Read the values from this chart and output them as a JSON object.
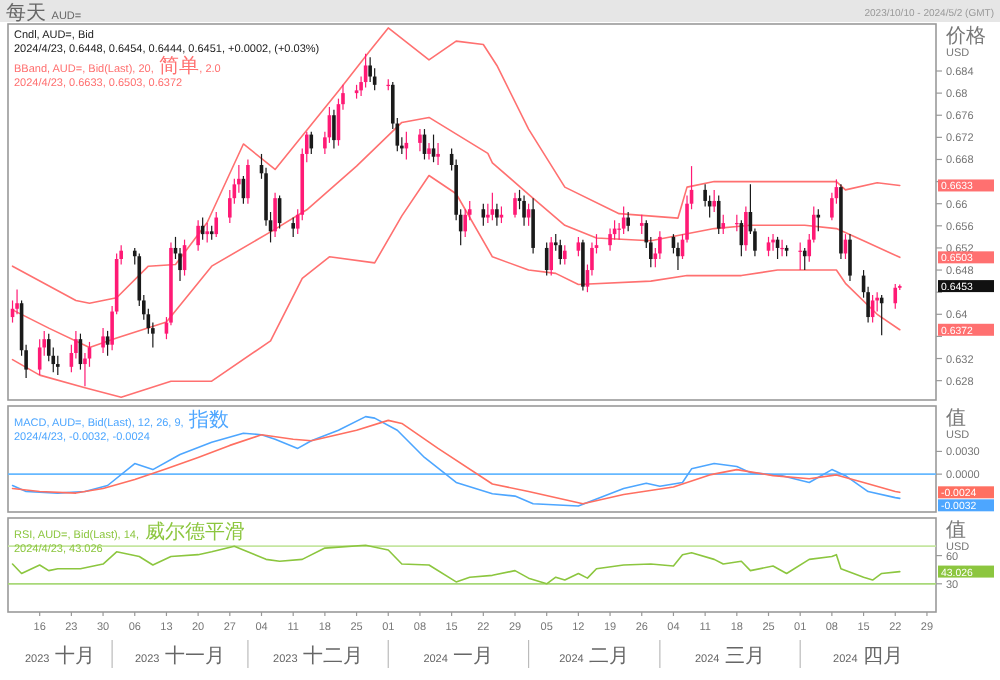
{
  "chart_data": [
    {
      "type": "candlestick",
      "title": "Cndl, AUD=, Bid",
      "subtitle": "2024/4/23, 0.6448, 0.6454, 0.6444, 0.6451, +0.0002, (+0.03%)",
      "ylabel": "价格\nUSD",
      "legend": "top left",
      "tick_labels": "y",
      "colors": [
        "#ff1a75",
        "#ff1a75",
        "#1a1a1a",
        "#1a1a1a",
        "#ff1a75",
        "#ff1a75",
        "#1a1a1a",
        "#1a1a1a",
        "#1a1a1a",
        "#ff1a75",
        "#ff1a75",
        "#1a1a1a",
        "#ff1a75",
        "#ff1a75",
        "#ff1a75",
        "#1a1a1a",
        "#ff1a75",
        "#ff1a75",
        "#ff1a75",
        "#1a1a1a",
        "#1a1a1a",
        "#1a1a1a",
        "#1a1a1a",
        "#1a1a1a",
        "#ff1a75",
        "#ff1a75",
        "#1a1a1a",
        "#1a1a1a",
        "#ff1a75",
        "#ff1a75",
        "#1a1a1a",
        "#ff1a75",
        "#1a1a1a",
        "#ff1a75",
        "#ff1a75",
        "#ff1a75",
        "#ff1a75",
        "#1a1a1a",
        "#ff1a75",
        "#1a1a1a",
        "#1a1a1a",
        "#1a1a1a",
        "#ff1a75",
        "#1a1a1a",
        "#1a1a1a",
        "#ff1a75",
        "#ff1a75",
        "#ff1a75",
        "#1a1a1a",
        "#ff1a75",
        "#ff1a75",
        "#1a1a1a",
        "#ff1a75",
        "#ff1a75",
        "#ff1a75",
        "#ff1a75",
        "#ff1a75",
        "#1a1a1a",
        "#1a1a1a",
        "#ff1a75",
        "#1a1a1a",
        "#1a1a1a",
        "#1a1a1a",
        "#ff1a75",
        "#ff1a75",
        "#1a1a1a",
        "#ff1a75",
        "#1a1a1a",
        "#ff1a75",
        "#1a1a1a",
        "#1a1a1a",
        "#1a1a1a",
        "#ff1a75",
        "#ff1a75",
        "#1a1a1a",
        "#ff1a75",
        "#ff1a75",
        "#1a1a1a",
        "#ff1a75",
        "#ff1a75",
        "#1a1a1a",
        "#1a1a1a",
        "#ff1a75",
        "#1a1a1a",
        "#1a1a1a",
        "#ff1a75",
        "#1a1a1a",
        "#1a1a1a",
        "#ff1a75",
        "#ff1a75",
        "#1a1a1a",
        "#ff1a75",
        "#ff1a75",
        "#ff1a75",
        "#ff1a75",
        "#ff1a75",
        "#ff1a75",
        "#ff1a75",
        "#1a1a1a",
        "#ff1a75",
        "#1a1a1a",
        "#1a1a1a",
        "#ff1a75",
        "#ff1a75",
        "#1a1a1a",
        "#1a1a1a",
        "#ff1a75",
        "#ff1a75",
        "#ff1a75",
        "#1a1a1a",
        "#1a1a1a",
        "#ff1a75",
        "#1a1a1a",
        "#ff1a75",
        "#ff1a75",
        "#1a1a1a",
        "#ff1a75",
        "#1a1a1a",
        "#1a1a1a",
        "#ff1a75",
        "#ff1a75",
        "#1a1a1a",
        "#ff1a75",
        "#1a1a1a",
        "#ff1a75",
        "#1a1a1a",
        "#ff1a75",
        "#ff1a75",
        "#1a1a1a",
        "#ff1a75",
        "#ff1a75",
        "#1a1a1a",
        "#ff1a75",
        "#1a1a1a",
        "#1a1a1a",
        "#1a1a1a",
        "#ff1a75",
        "#ff1a75",
        "#1a1a1a",
        "#ff1a75",
        "#ff1a75"
      ],
      "xlim": [
        "2023-10-09",
        "2024-05-01"
      ],
      "ylim": [
        0.6245,
        0.6925
      ],
      "yticks": [
        0.684,
        0.68,
        0.676,
        0.672,
        0.668,
        {
          "value": 0.664,
          "label": null
        },
        0.66,
        0.656,
        0.652,
        0.648,
        {
          "value": 0.644,
          "label": null
        },
        0.64,
        {
          "value": 0.636,
          "label": null
        },
        0.632,
        0.628
      ],
      "annotations": [
        {
          "text": "每天 AUD="
        },
        {
          "text": "2023/10/10 - 2024/5/2 (GMT)"
        },
        "2024/4/23, 0.6633, 0.6503, 0.6372",
        {
          "text": "0.6633"
        },
        {
          "text": "0.6503"
        },
        {
          "text": "0.6372"
        },
        {
          "text": "0.6453"
        }
      ],
      "x": [
        "2023-10-10",
        "2023-10-11",
        "2023-10-12",
        "2023-10-13",
        "2023-10-16",
        "2023-10-17",
        "2023-10-18",
        "2023-10-19",
        "2023-10-20",
        "2023-10-23",
        "2023-10-24",
        "2023-10-25",
        "2023-10-26",
        "2023-10-27",
        "2023-10-30",
        "2023-10-31",
        "2023-11-01",
        "2023-11-02",
        "2023-11-03",
        "2023-11-06",
        "2023-11-07",
        "2023-11-08",
        "2023-11-09",
        "2023-11-10",
        "2023-11-13",
        "2023-11-14",
        "2023-11-15",
        "2023-11-16",
        "2023-11-17",
        "2023-11-20",
        "2023-11-21",
        "2023-11-22",
        "2023-11-23",
        "2023-11-24",
        "2023-11-27",
        "2023-11-28",
        "2023-11-29",
        "2023-11-30",
        "2023-12-01",
        "2023-12-04",
        "2023-12-05",
        "2023-12-06",
        "2023-12-07",
        "2023-12-08",
        "2023-12-11",
        "2023-12-12",
        "2023-12-13",
        "2023-12-14",
        "2023-12-15",
        "2023-12-18",
        "2023-12-19",
        "2023-12-20",
        "2023-12-21",
        "2023-12-22",
        "2023-12-25",
        "2023-12-26",
        "2023-12-27",
        "2023-12-28",
        "2023-12-29",
        "2024-01-01",
        "2024-01-02",
        "2024-01-03",
        "2024-01-04",
        "2024-01-05",
        "2024-01-08",
        "2024-01-09",
        "2024-01-10",
        "2024-01-11",
        "2024-01-12",
        "2024-01-15",
        "2024-01-16",
        "2024-01-17",
        "2024-01-18",
        "2024-01-19",
        "2024-01-22",
        "2024-01-23",
        "2024-01-24",
        "2024-01-25",
        "2024-01-26",
        "2024-01-29",
        "2024-01-30",
        "2024-01-31",
        "2024-02-01",
        "2024-02-02",
        "2024-02-05",
        "2024-02-06",
        "2024-02-07",
        "2024-02-08",
        "2024-02-09",
        "2024-02-12",
        "2024-02-13",
        "2024-02-14",
        "2024-02-15",
        "2024-02-16",
        "2024-02-19",
        "2024-02-20",
        "2024-02-21",
        "2024-02-22",
        "2024-02-23",
        "2024-02-26",
        "2024-02-27",
        "2024-02-28",
        "2024-02-29",
        "2024-03-01",
        "2024-03-04",
        "2024-03-05",
        "2024-03-06",
        "2024-03-07",
        "2024-03-08",
        "2024-03-11",
        "2024-03-12",
        "2024-03-13",
        "2024-03-14",
        "2024-03-15",
        "2024-03-18",
        "2024-03-19",
        "2024-03-20",
        "2024-03-21",
        "2024-03-22",
        "2024-03-25",
        "2024-03-26",
        "2024-03-27",
        "2024-03-28",
        "2024-03-29",
        "2024-04-01",
        "2024-04-02",
        "2024-04-03",
        "2024-04-04",
        "2024-04-05",
        "2024-04-08",
        "2024-04-09",
        "2024-04-10",
        "2024-04-11",
        "2024-04-12",
        "2024-04-15",
        "2024-04-16",
        "2024-04-17",
        "2024-04-18",
        "2024-04-19",
        "2024-04-22",
        "2024-04-23"
      ],
      "ohlc": [
        [
          0.6395,
          0.6425,
          0.6385,
          0.641
        ],
        [
          0.641,
          0.6445,
          0.64,
          0.642
        ],
        [
          0.642,
          0.6425,
          0.6325,
          0.6335
        ],
        [
          0.6335,
          0.6345,
          0.6285,
          0.63
        ],
        [
          0.63,
          0.6355,
          0.629,
          0.634
        ],
        [
          0.634,
          0.637,
          0.6325,
          0.6355
        ],
        [
          0.6355,
          0.6365,
          0.6315,
          0.6325
        ],
        [
          0.6325,
          0.634,
          0.6295,
          0.631
        ],
        [
          0.631,
          0.6325,
          0.629,
          0.6305
        ],
        [
          0.6305,
          0.6345,
          0.6295,
          0.633
        ],
        [
          0.633,
          0.637,
          0.632,
          0.6355
        ],
        [
          0.6355,
          0.6365,
          0.63,
          0.631
        ],
        [
          0.631,
          0.633,
          0.627,
          0.632
        ],
        [
          0.632,
          0.635,
          0.6305,
          0.634
        ],
        [
          0.634,
          0.6375,
          0.633,
          0.636
        ],
        [
          0.636,
          0.637,
          0.6325,
          0.6345
        ],
        [
          0.6345,
          0.6415,
          0.6335,
          0.6405
        ],
        [
          0.6405,
          0.651,
          0.64,
          0.65
        ],
        [
          0.65,
          0.6525,
          0.649,
          0.6515
        ],
        [
          0.6515,
          0.652,
          0.649,
          0.6505
        ],
        [
          0.6505,
          0.651,
          0.6415,
          0.6425
        ],
        [
          0.6425,
          0.6435,
          0.639,
          0.64
        ],
        [
          0.64,
          0.641,
          0.6365,
          0.6375
        ],
        [
          0.6375,
          0.6385,
          0.634,
          0.6365
        ],
        [
          0.6365,
          0.6395,
          0.6355,
          0.6385
        ],
        [
          0.6385,
          0.653,
          0.638,
          0.652
        ],
        [
          0.652,
          0.654,
          0.65,
          0.651
        ],
        [
          0.651,
          0.652,
          0.646,
          0.648
        ],
        [
          0.648,
          0.6535,
          0.647,
          0.6525
        ],
        [
          0.6525,
          0.657,
          0.6515,
          0.656
        ],
        [
          0.656,
          0.6575,
          0.6535,
          0.6545
        ],
        [
          0.6545,
          0.6565,
          0.653,
          0.655
        ],
        [
          0.655,
          0.656,
          0.6535,
          0.6545
        ],
        [
          0.6545,
          0.6585,
          0.654,
          0.6575
        ],
        [
          0.6575,
          0.6625,
          0.6565,
          0.661
        ],
        [
          0.661,
          0.6645,
          0.66,
          0.6635
        ],
        [
          0.6635,
          0.667,
          0.662,
          0.6645
        ],
        [
          0.6645,
          0.665,
          0.66,
          0.661
        ],
        [
          0.661,
          0.668,
          0.66,
          0.667
        ],
        [
          0.667,
          0.669,
          0.6645,
          0.6655
        ],
        [
          0.6655,
          0.6665,
          0.656,
          0.657
        ],
        [
          0.657,
          0.6585,
          0.653,
          0.655
        ],
        [
          0.655,
          0.662,
          0.654,
          0.661
        ],
        [
          0.661,
          0.6615,
          0.6555,
          0.6565
        ],
        [
          0.6565,
          0.6575,
          0.654,
          0.6555
        ],
        [
          0.6555,
          0.659,
          0.6545,
          0.658
        ],
        [
          0.658,
          0.67,
          0.657,
          0.669
        ],
        [
          0.669,
          0.673,
          0.6675,
          0.6725
        ],
        [
          0.6725,
          0.673,
          0.669,
          0.67
        ],
        [
          0.67,
          0.673,
          0.669,
          0.672
        ],
        [
          0.672,
          0.6775,
          0.671,
          0.676
        ],
        [
          0.676,
          0.677,
          0.67,
          0.6715
        ],
        [
          0.6715,
          0.679,
          0.6705,
          0.678
        ],
        [
          0.678,
          0.6815,
          0.677,
          0.68
        ],
        [
          0.68,
          0.6815,
          0.679,
          0.6805
        ],
        [
          0.6805,
          0.683,
          0.6795,
          0.682
        ],
        [
          0.682,
          0.6871,
          0.681,
          0.685
        ],
        [
          0.685,
          0.6865,
          0.682,
          0.683
        ],
        [
          0.683,
          0.6845,
          0.6805,
          0.6815
        ],
        [
          0.6815,
          0.6825,
          0.6805,
          0.6815
        ],
        [
          0.6815,
          0.682,
          0.6735,
          0.6745
        ],
        [
          0.6745,
          0.6755,
          0.6695,
          0.6705
        ],
        [
          0.6705,
          0.672,
          0.669,
          0.67
        ],
        [
          0.67,
          0.673,
          0.668,
          0.671
        ],
        [
          0.671,
          0.6735,
          0.6695,
          0.6725
        ],
        [
          0.6725,
          0.6735,
          0.668,
          0.669
        ],
        [
          0.669,
          0.671,
          0.668,
          0.67
        ],
        [
          0.67,
          0.6725,
          0.6675,
          0.6685
        ],
        [
          0.6685,
          0.671,
          0.667,
          0.669
        ],
        [
          0.669,
          0.67,
          0.666,
          0.667
        ],
        [
          0.667,
          0.668,
          0.657,
          0.658
        ],
        [
          0.658,
          0.659,
          0.6525,
          0.655
        ],
        [
          0.655,
          0.659,
          0.654,
          0.658
        ],
        [
          0.658,
          0.6605,
          0.657,
          0.659
        ],
        [
          0.659,
          0.66,
          0.656,
          0.6575
        ],
        [
          0.6575,
          0.66,
          0.6565,
          0.658
        ],
        [
          0.658,
          0.662,
          0.657,
          0.659
        ],
        [
          0.659,
          0.66,
          0.656,
          0.6575
        ],
        [
          0.6575,
          0.6595,
          0.6565,
          0.658
        ],
        [
          0.658,
          0.662,
          0.6575,
          0.661
        ],
        [
          0.661,
          0.6625,
          0.659,
          0.6605
        ],
        [
          0.6605,
          0.6615,
          0.656,
          0.6575
        ],
        [
          0.6575,
          0.66,
          0.656,
          0.659
        ],
        [
          0.659,
          0.661,
          0.651,
          0.652
        ],
        [
          0.652,
          0.653,
          0.647,
          0.648
        ],
        [
          0.648,
          0.654,
          0.647,
          0.653
        ],
        [
          0.653,
          0.6545,
          0.6515,
          0.6525
        ],
        [
          0.6525,
          0.6535,
          0.649,
          0.65
        ],
        [
          0.65,
          0.6525,
          0.649,
          0.6515
        ],
        [
          0.6515,
          0.654,
          0.6505,
          0.653
        ],
        [
          0.653,
          0.6535,
          0.6443,
          0.645
        ],
        [
          0.645,
          0.649,
          0.644,
          0.648
        ],
        [
          0.648,
          0.653,
          0.647,
          0.652
        ],
        [
          0.652,
          0.6545,
          0.651,
          0.6525
        ],
        [
          0.6525,
          0.6555,
          0.6515,
          0.6545
        ],
        [
          0.6545,
          0.657,
          0.6535,
          0.6555
        ],
        [
          0.6555,
          0.6565,
          0.6535,
          0.6555
        ],
        [
          0.6555,
          0.6595,
          0.6545,
          0.6575
        ],
        [
          0.6575,
          0.6585,
          0.655,
          0.656
        ],
        [
          0.656,
          0.658,
          0.6545,
          0.6565
        ],
        [
          0.6565,
          0.657,
          0.652,
          0.653
        ],
        [
          0.653,
          0.654,
          0.6485,
          0.65
        ],
        [
          0.65,
          0.652,
          0.6485,
          0.651
        ],
        [
          0.651,
          0.655,
          0.65,
          0.654
        ],
        [
          0.654,
          0.6545,
          0.651,
          0.652
        ],
        [
          0.652,
          0.653,
          0.648,
          0.6505
        ],
        [
          0.6505,
          0.6545,
          0.65,
          0.6535
        ],
        [
          0.6535,
          0.6615,
          0.653,
          0.66
        ],
        [
          0.66,
          0.6668,
          0.659,
          0.6625
        ],
        [
          0.6625,
          0.6635,
          0.6595,
          0.6605
        ],
        [
          0.6605,
          0.6615,
          0.6575,
          0.6595
        ],
        [
          0.6595,
          0.6625,
          0.6585,
          0.6605
        ],
        [
          0.6605,
          0.6615,
          0.6545,
          0.6555
        ],
        [
          0.6555,
          0.658,
          0.6545,
          0.6565
        ],
        [
          0.6565,
          0.658,
          0.655,
          0.6565
        ],
        [
          0.6565,
          0.657,
          0.6505,
          0.6525
        ],
        [
          0.6525,
          0.6595,
          0.6515,
          0.6585
        ],
        [
          0.6585,
          0.6635,
          0.6545,
          0.655
        ],
        [
          0.655,
          0.6555,
          0.6505,
          0.6515
        ],
        [
          0.6515,
          0.654,
          0.6505,
          0.653
        ],
        [
          0.653,
          0.6545,
          0.6515,
          0.6535
        ],
        [
          0.6535,
          0.654,
          0.65,
          0.652
        ],
        [
          0.652,
          0.6535,
          0.6505,
          0.652
        ],
        [
          0.652,
          0.6525,
          0.6505,
          0.6515
        ],
        [
          0.6515,
          0.653,
          0.648,
          0.6515
        ],
        [
          0.6515,
          0.652,
          0.648,
          0.6505
        ],
        [
          0.6505,
          0.6545,
          0.6495,
          0.6535
        ],
        [
          0.6535,
          0.6595,
          0.653,
          0.658
        ],
        [
          0.658,
          0.659,
          0.655,
          0.6575
        ],
        [
          0.6575,
          0.662,
          0.657,
          0.661
        ],
        [
          0.661,
          0.6644,
          0.66,
          0.663
        ],
        [
          0.663,
          0.6635,
          0.65,
          0.651
        ],
        [
          0.651,
          0.6545,
          0.65,
          0.6535
        ],
        [
          0.6535,
          0.6545,
          0.646,
          0.647
        ],
        [
          0.647,
          0.648,
          0.643,
          0.644
        ],
        [
          0.644,
          0.645,
          0.6385,
          0.6395
        ],
        [
          0.6395,
          0.6435,
          0.6385,
          0.6425
        ],
        [
          0.6425,
          0.644,
          0.6405,
          0.643
        ],
        [
          0.643,
          0.6435,
          0.6362,
          0.642
        ],
        [
          0.642,
          0.6455,
          0.641,
          0.6448
        ],
        [
          0.6448,
          0.6454,
          0.6444,
          0.6451
        ]
      ],
      "series": [
        {
          "type": "line",
          "name": "BBand, AUD=, Bid(Last), 20, 简单, 2.0",
          "color": "#ff7070",
          "x": [
            "2023-10-10",
            "2023-10-24",
            "2023-10-27",
            "2023-11-02",
            "2023-11-09",
            "2023-11-15",
            "2023-11-22",
            "2023-11-30",
            "2023-12-07",
            "2023-12-21",
            "2023-12-28",
            "2024-01-01",
            "2024-01-10",
            "2024-01-16",
            "2024-01-22",
            "2024-01-25",
            "2024-02-01",
            "2024-02-09",
            "2024-02-21",
            "2024-03-05",
            "2024-03-07",
            "2024-03-13",
            "2024-04-09",
            "2024-04-11",
            "2024-04-18",
            "2024-04-23"
          ],
          "values": [
            0.6487,
            0.6425,
            0.642,
            0.643,
            0.6487,
            0.649,
            0.6566,
            0.6708,
            0.6662,
            0.6804,
            0.6877,
            0.6918,
            0.686,
            0.6894,
            0.6888,
            0.685,
            0.6735,
            0.663,
            0.6582,
            0.6574,
            0.663,
            0.664,
            0.664,
            0.6625,
            0.6638,
            0.6633
          ]
        },
        {
          "type": "line",
          "color": "#ff7070",
          "x": [
            "2023-10-10",
            "2023-10-18",
            "2023-10-27",
            "2023-11-02",
            "2023-11-13",
            "2023-11-23",
            "2023-12-06",
            "2023-12-14",
            "2023-12-25",
            "2024-01-04",
            "2024-01-10",
            "2024-01-23",
            "2024-01-24",
            "2024-02-01",
            "2024-02-09",
            "2024-02-16",
            "2024-02-28",
            "2024-03-13",
            "2024-03-21",
            "2024-04-02",
            "2024-04-09",
            "2024-04-15",
            "2024-04-23"
          ],
          "values": [
            0.6408,
            0.6375,
            0.634,
            0.6357,
            0.6386,
            0.6487,
            0.6549,
            0.6589,
            0.6668,
            0.6747,
            0.6756,
            0.6691,
            0.6674,
            0.6617,
            0.6561,
            0.6538,
            0.6533,
            0.6555,
            0.6561,
            0.6561,
            0.6555,
            0.6533,
            0.6503
          ]
        },
        {
          "type": "line",
          "color": "#ff7070",
          "x": [
            "2023-10-10",
            "2023-10-16",
            "2023-10-26",
            "2023-11-03",
            "2023-11-14",
            "2023-11-23",
            "2023-12-06",
            "2023-12-13",
            "2023-12-19",
            "2023-12-29",
            "2024-01-04",
            "2024-01-10",
            "2024-01-16",
            "2024-01-24",
            "2024-02-01",
            "2024-02-07",
            "2024-02-12",
            "2024-02-28",
            "2024-03-07",
            "2024-03-19",
            "2024-03-27",
            "2024-04-09",
            "2024-04-11",
            "2024-04-18",
            "2024-04-23"
          ],
          "values": [
            0.6318,
            0.629,
            0.6267,
            0.625,
            0.6279,
            0.6279,
            0.6352,
            0.6465,
            0.6504,
            0.6493,
            0.6578,
            0.6651,
            0.6618,
            0.6504,
            0.648,
            0.6474,
            0.6454,
            0.646,
            0.647,
            0.647,
            0.648,
            0.648,
            0.6456,
            0.64,
            0.6372
          ]
        }
      ]
    },
    {
      "type": "line",
      "ylabel": "值\nUSD",
      "legend": "top left",
      "tick_labels": "y",
      "xlim": [
        "2023-10-09",
        "2024-05-01"
      ],
      "ylim": [
        -0.005,
        0.009
      ],
      "yticks": [
        {
          "value": 0.003,
          "label": "0.0030"
        },
        {
          "value": 0,
          "label": "0.0000"
        }
      ],
      "ref_lines": [
        {
          "axis": "y",
          "value": 0,
          "color": "#66b8ff"
        }
      ],
      "subtitle": "2024/4/23, -0.0032, -0.0024",
      "annotations": [
        {
          "text": "-0.0032"
        },
        {
          "text": "-0.0024"
        }
      ],
      "series": [
        {
          "type": "line",
          "name": "MACD, AUD=, Bid(Last), 12, 26, 9, 指数",
          "color": "#4da6ff",
          "x": [
            "2023-10-10",
            "2023-10-13",
            "2023-10-20",
            "2023-10-26",
            "2023-10-31",
            "2023-11-06",
            "2023-11-10",
            "2023-11-16",
            "2023-11-23",
            "2023-11-30",
            "2023-12-04",
            "2023-12-07",
            "2023-12-12",
            "2023-12-15",
            "2023-12-21",
            "2023-12-27",
            "2023-12-29",
            "2024-01-03",
            "2024-01-09",
            "2024-01-16",
            "2024-01-24",
            "2024-01-29",
            "2024-02-02",
            "2024-02-12",
            "2024-02-15",
            "2024-02-22",
            "2024-02-27",
            "2024-03-01",
            "2024-03-06",
            "2024-03-08",
            "2024-03-13",
            "2024-03-18",
            "2024-03-21",
            "2024-03-28",
            "2024-04-03",
            "2024-04-08",
            "2024-04-11",
            "2024-04-16",
            "2024-04-22",
            "2024-04-23"
          ],
          "values": [
            -0.0015,
            -0.0023,
            -0.0025,
            -0.0023,
            -0.0015,
            0.0014,
            0.0006,
            0.0026,
            0.0042,
            0.0054,
            0.0052,
            0.0046,
            0.0034,
            0.0044,
            0.0058,
            0.0076,
            0.0074,
            0.0058,
            0.0022,
            -0.0011,
            -0.0026,
            -0.0029,
            -0.0039,
            -0.0042,
            -0.0035,
            -0.0019,
            -0.0012,
            -0.0016,
            -0.0011,
            0.0007,
            0.0014,
            0.001,
            0.0002,
            -0.0002,
            -0.0011,
            0.0006,
            -0.0002,
            -0.0023,
            -0.0031,
            -0.0032
          ]
        },
        {
          "type": "line",
          "color": "#ff6f61",
          "x": [
            "2023-10-10",
            "2023-10-16",
            "2023-10-24",
            "2023-10-30",
            "2023-11-06",
            "2023-11-13",
            "2023-11-20",
            "2023-11-27",
            "2023-12-04",
            "2023-12-11",
            "2023-12-15",
            "2023-12-25",
            "2024-01-01",
            "2024-01-04",
            "2024-01-12",
            "2024-01-24",
            "2024-02-01",
            "2024-02-13",
            "2024-02-22",
            "2024-03-04",
            "2024-03-12",
            "2024-03-18",
            "2024-03-26",
            "2024-04-03",
            "2024-04-09",
            "2024-04-15",
            "2024-04-22",
            "2024-04-23"
          ],
          "values": [
            -0.0019,
            -0.0023,
            -0.0025,
            -0.0019,
            -0.0007,
            0.0007,
            0.0022,
            0.0038,
            0.0052,
            0.0046,
            0.0044,
            0.0058,
            0.0071,
            0.0067,
            0.0034,
            -0.0013,
            -0.0023,
            -0.0039,
            -0.0027,
            -0.0017,
            -0.0001,
            0.0006,
            -0.0002,
            -0.0006,
            -0.0001,
            -0.0011,
            -0.0023,
            -0.0024
          ]
        }
      ]
    },
    {
      "type": "line",
      "ylabel": "值\nUSD",
      "legend": "top left",
      "xlim": [
        "2023-10-09",
        "2024-05-01"
      ],
      "ylim": [
        0,
        100
      ],
      "yticks": [
        60,
        30
      ],
      "xticks": [
        {
          "value": "2023-10-16",
          "label": "16"
        },
        {
          "value": "2023-10-23",
          "label": "23"
        },
        {
          "value": "2023-10-30",
          "label": "30"
        },
        {
          "value": "2023-11-06",
          "label": "06"
        },
        {
          "value": "2023-11-13",
          "label": "13"
        },
        {
          "value": "2023-11-20",
          "label": "20"
        },
        {
          "value": "2023-11-27",
          "label": "27"
        },
        {
          "value": "2023-12-04",
          "label": "04"
        },
        {
          "value": "2023-12-11",
          "label": "11"
        },
        {
          "value": "2023-12-18",
          "label": "18"
        },
        {
          "value": "2023-12-25",
          "label": "25"
        },
        {
          "value": "2024-01-01",
          "label": "01"
        },
        {
          "value": "2024-01-08",
          "label": "08"
        },
        {
          "value": "2024-01-15",
          "label": "15"
        },
        {
          "value": "2024-01-22",
          "label": "22"
        },
        {
          "value": "2024-01-29",
          "label": "29"
        },
        {
          "value": "2024-02-05",
          "label": "05"
        },
        {
          "value": "2024-02-12",
          "label": "12"
        },
        {
          "value": "2024-02-19",
          "label": "19"
        },
        {
          "value": "2024-02-26",
          "label": "26"
        },
        {
          "value": "2024-03-04",
          "label": "04"
        },
        {
          "value": "2024-03-11",
          "label": "11"
        },
        {
          "value": "2024-03-18",
          "label": "18"
        },
        {
          "value": "2024-03-25",
          "label": "25"
        },
        {
          "value": "2024-04-01",
          "label": "01"
        },
        {
          "value": "2024-04-08",
          "label": "08"
        },
        {
          "value": "2024-04-15",
          "label": "15"
        },
        {
          "value": "2024-04-22",
          "label": "22"
        },
        {
          "value": "2024-04-29",
          "label": "29"
        }
      ],
      "ref_lines": [
        {
          "axis": "y",
          "value": 70,
          "color": "#c5e6a0"
        },
        {
          "axis": "y",
          "value": 30,
          "color": "#a8d878"
        }
      ],
      "subtitle": "2024/4/23, 43.026",
      "annotations": [
        "2023 十月",
        "2023 十一月",
        "2023 十二月",
        "2024 一月",
        "2024 二月",
        "2024 三月",
        "2024 四月",
        {
          "text": "43.026"
        }
      ],
      "series": [
        {
          "type": "line",
          "name": "RSI, AUD=, Bid(Last), 14, 威尔德平滑",
          "color": "#8cc63f",
          "x": [
            "2023-10-10",
            "2023-10-12",
            "2023-10-16",
            "2023-10-18",
            "2023-10-20",
            "2023-10-25",
            "2023-10-30",
            "2023-11-02",
            "2023-11-07",
            "2023-11-10",
            "2023-11-14",
            "2023-11-20",
            "2023-11-23",
            "2023-11-28",
            "2023-11-30",
            "2023-12-05",
            "2023-12-08",
            "2023-12-13",
            "2023-12-18",
            "2023-12-21",
            "2023-12-27",
            "2024-01-01",
            "2024-01-04",
            "2024-01-10",
            "2024-01-16",
            "2024-01-19",
            "2024-01-24",
            "2024-01-29",
            "2024-02-01",
            "2024-02-05",
            "2024-02-07",
            "2024-02-09",
            "2024-02-12",
            "2024-02-14",
            "2024-02-16",
            "2024-02-22",
            "2024-02-28",
            "2024-03-04",
            "2024-03-06",
            "2024-03-08",
            "2024-03-13",
            "2024-03-15",
            "2024-03-19",
            "2024-03-21",
            "2024-03-26",
            "2024-03-29",
            "2024-04-03",
            "2024-04-08",
            "2024-04-09",
            "2024-04-10",
            "2024-04-15",
            "2024-04-17",
            "2024-04-19",
            "2024-04-23"
          ],
          "values": [
            51,
            41,
            50,
            44,
            46,
            46,
            51,
            64,
            59,
            50,
            59,
            61,
            64,
            70,
            66,
            56,
            54,
            56,
            68,
            69,
            71,
            66,
            51,
            50,
            32,
            37,
            39,
            44,
            36,
            30,
            37,
            34,
            41,
            36,
            46,
            50,
            51,
            49,
            61,
            63,
            56,
            51,
            54,
            44,
            49,
            41,
            56,
            59,
            61,
            46,
            37,
            34,
            41,
            43
          ]
        }
      ]
    }
  ]
}
